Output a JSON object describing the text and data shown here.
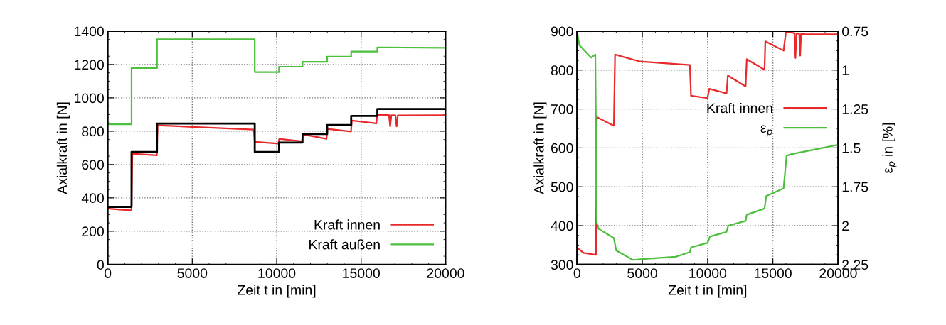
{
  "chart_data": [
    {
      "type": "line",
      "xlabel": "Zeit t in [min]",
      "ylabel": "Axialkraft in [N]",
      "xlim": [
        0,
        20000
      ],
      "xticks": [
        0,
        5000,
        10000,
        15000,
        20000
      ],
      "ylim": [
        0,
        1400
      ],
      "yticks": [
        0,
        200,
        400,
        600,
        800,
        1000,
        1200,
        1400
      ],
      "grid": true,
      "legend": "bottom right",
      "line_style": "solid",
      "marker": "none",
      "series": [
        {
          "color": "#000000",
          "x": [
            0,
            1405,
            1405,
            2910,
            2910,
            8700,
            8700,
            10140,
            10140,
            11530,
            11530,
            12990,
            12990,
            14410,
            14410,
            15960,
            15960,
            20000
          ],
          "values": [
            346,
            346,
            675,
            675,
            846,
            846,
            675,
            675,
            732,
            732,
            783,
            783,
            837,
            837,
            892,
            892,
            933,
            933
          ]
        },
        {
          "name": "Kraft innen",
          "color": "#e8282a",
          "x": [
            0,
            700,
            1400,
            1450,
            2900,
            2950,
            8650,
            8700,
            8750,
            10100,
            10150,
            10200,
            11500,
            11550,
            12950,
            13000,
            14400,
            14450,
            15900,
            15960,
            16650,
            16720,
            16790,
            17030,
            17100,
            17170,
            20000
          ],
          "values": [
            336,
            330,
            325,
            665,
            655,
            835,
            810,
            736,
            736,
            726,
            753,
            753,
            739,
            781,
            754,
            814,
            798,
            864,
            847,
            899,
            897,
            829,
            896,
            895,
            829,
            895,
            896
          ]
        },
        {
          "name": "Kraft außen",
          "color": "#4cbf3c",
          "x": [
            0,
            1405,
            1405,
            2910,
            2910,
            8700,
            8700,
            10140,
            10140,
            11530,
            11530,
            12990,
            12990,
            14410,
            14410,
            15960,
            15960,
            20000
          ],
          "values": [
            842,
            842,
            1179,
            1179,
            1352,
            1352,
            1155,
            1155,
            1187,
            1187,
            1216,
            1216,
            1247,
            1247,
            1278,
            1278,
            1303,
            1300
          ]
        }
      ]
    },
    {
      "type": "line",
      "xlabel": "Zeit t in [min]",
      "ylabel": "Axialkraft in [N]",
      "y2label": "ε$_{p}$ in [%]",
      "xlim": [
        0,
        20000
      ],
      "xticks": [
        0,
        5000,
        10000,
        15000,
        20000
      ],
      "ylim": [
        300,
        900
      ],
      "yticks": [
        300,
        400,
        500,
        600,
        700,
        800,
        900
      ],
      "y2lim": [
        2.25,
        0.75
      ],
      "y2ticks": [
        0.75,
        1,
        1.25,
        1.5,
        1.75,
        2,
        2.25
      ],
      "grid": true,
      "legend": "right",
      "line_style": "solid",
      "marker": "none",
      "series": [
        {
          "name": "Kraft innen",
          "color": "#e8282a",
          "x": [
            0,
            55,
            500,
            1450,
            1510,
            2820,
            2910,
            4820,
            8640,
            8730,
            9990,
            10130,
            11450,
            11550,
            12910,
            13000,
            14360,
            14420,
            15820,
            16000,
            16650,
            16730,
            16800,
            17020,
            17090,
            17160,
            17550,
            20000
          ],
          "values": [
            342,
            342,
            330,
            325,
            679,
            657,
            840,
            822,
            813,
            734,
            728,
            752,
            740,
            786,
            758,
            828,
            801,
            874,
            850,
            898,
            895,
            831,
            894,
            893,
            837,
            893,
            892,
            892
          ]
        },
        {
          "name": "ε$_{p}$",
          "color": "#4cbf3c",
          "axis": "y2",
          "x": [
            0,
            180,
            1090,
            1400,
            1510,
            1640,
            2820,
            3000,
            4270,
            5730,
            7550,
            8640,
            8730,
            10000,
            10180,
            11450,
            11580,
            12910,
            13000,
            14360,
            14490,
            15820,
            16050,
            16450,
            20000
          ],
          "values": [
            0.75,
            0.84,
            0.92,
            0.9,
            1.98,
            2.02,
            2.08,
            2.16,
            2.22,
            2.21,
            2.2,
            2.17,
            2.14,
            2.11,
            2.07,
            2.04,
            2.0,
            1.97,
            1.93,
            1.89,
            1.81,
            1.76,
            1.55,
            1.54,
            1.48
          ]
        }
      ]
    }
  ]
}
